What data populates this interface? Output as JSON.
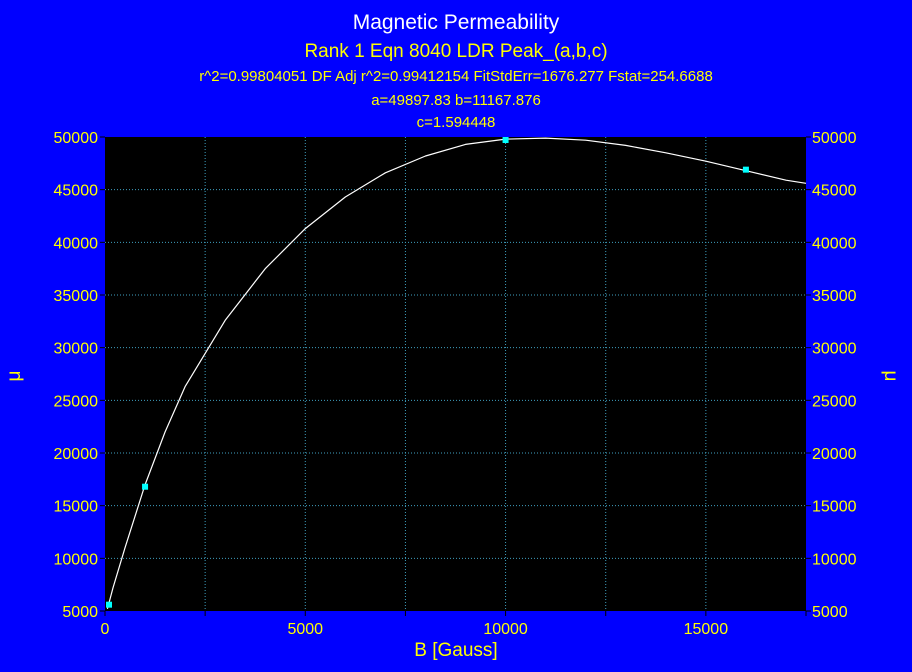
{
  "colors": {
    "background": "#0000ff",
    "plot_background": "#000000",
    "title": "#ffffff",
    "text": "#ffff00",
    "grid": "#3f9fbf",
    "curve": "#ffffff",
    "points": "#00ffff"
  },
  "chart_data": {
    "type": "scatter",
    "title": "Magnetic Permeability",
    "subtitle": "Rank 1  Eqn 8040  LDR Peak_(a,b,c)",
    "stats_line": "r^2=0.99804051  DF Adj r^2=0.99412154  FitStdErr=1676.277  Fstat=254.6688",
    "params_line1": "a=49897.83 b=11167.876",
    "params_line2": "c=1.594448",
    "xlabel": "B [Gauss]",
    "ylabel": "μ",
    "ylabel_right": "μ",
    "xlim": [
      0,
      17500
    ],
    "ylim": [
      5000,
      50000
    ],
    "x_ticks": [
      0,
      5000,
      10000,
      15000
    ],
    "y_ticks": [
      5000,
      10000,
      15000,
      20000,
      25000,
      30000,
      35000,
      40000,
      45000,
      50000
    ],
    "grid": true,
    "series": [
      {
        "kind": "points",
        "x": [
          100,
          1000,
          10000,
          16000
        ],
        "y": [
          5600,
          16800,
          50000,
          46900
        ]
      },
      {
        "kind": "fit-curve",
        "x": [
          60,
          200,
          500,
          1000,
          1500,
          2000,
          3000,
          4000,
          5000,
          6000,
          7000,
          8000,
          9000,
          10000,
          11000,
          12000,
          13000,
          14000,
          15000,
          16000,
          17000,
          17500
        ],
        "y": [
          5200,
          7200,
          11000,
          17000,
          22000,
          26300,
          32600,
          37500,
          41300,
          44300,
          46600,
          48200,
          49300,
          49800,
          49900,
          49700,
          49200,
          48500,
          47700,
          46800,
          45900,
          45600
        ]
      }
    ]
  }
}
